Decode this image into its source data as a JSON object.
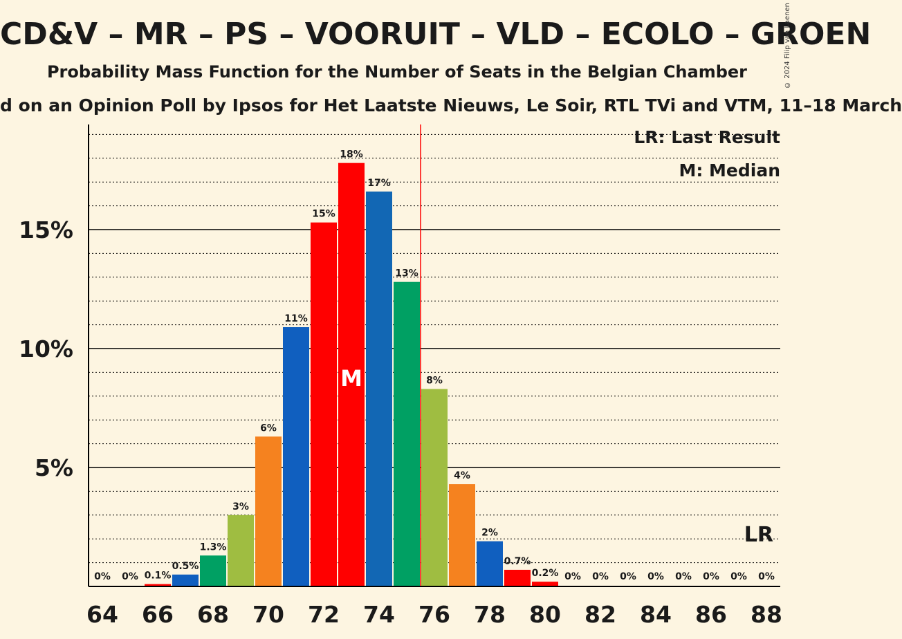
{
  "title": "CD&V – MR – PS – VOORUIT – VLD – ECOLO – GROEN",
  "subtitle": "Probability Mass Function for the Number of Seats in the Belgian Chamber",
  "source": "d on an Opinion Poll by Ipsos for Het Laatste Nieuws, Le Soir, RTL TVi and VTM, 11–18 March",
  "copyright": "© 2024 Filip van Laenen",
  "legend": {
    "last_result": "LR: Last Result",
    "median": "M: Median"
  },
  "colors": {
    "background": "#fdf5e1",
    "cdv": "#f5821f",
    "mr": "#105fbf",
    "ps": "#ff0000",
    "vooruit": "#ff0000",
    "vld": "#1267b4",
    "ecolo": "#00a063",
    "groen": "#9fbd41"
  },
  "chart_data": {
    "type": "bar",
    "x": [
      64,
      65,
      66,
      67,
      68,
      69,
      70,
      71,
      72,
      73,
      74,
      75,
      76,
      77,
      78,
      79,
      80,
      81,
      82,
      83,
      84,
      85,
      86,
      87,
      88
    ],
    "values": [
      0,
      0,
      0.1,
      0.5,
      1.3,
      3.0,
      6.3,
      10.9,
      15.3,
      17.8,
      16.6,
      12.8,
      8.3,
      4.3,
      1.9,
      0.7,
      0.2,
      0,
      0,
      0,
      0,
      0,
      0,
      0,
      0
    ],
    "labels": [
      "0%",
      "0%",
      "0.1%",
      "0.5%",
      "1.3%",
      "3%",
      "6%",
      "11%",
      "15%",
      "18%",
      "17%",
      "13%",
      "8%",
      "4%",
      "2%",
      "0.7%",
      "0.2%",
      "0%",
      "0%",
      "0%",
      "0%",
      "0%",
      "0%",
      "0%",
      "0%"
    ],
    "bar_colors": [
      "#ff0000",
      "#105fbf",
      "#ff0000",
      "#105fbf",
      "#00a063",
      "#9fbd41",
      "#f5821f",
      "#105fbf",
      "#ff0000",
      "#ff0000",
      "#1267b4",
      "#00a063",
      "#9fbd41",
      "#f5821f",
      "#105fbf",
      "#ff0000",
      "#ff0000",
      "#105fbf",
      "#ff0000",
      "#105fbf",
      "#00a063",
      "#9fbd41",
      "#f5821f",
      "#105fbf",
      "#ff0000"
    ],
    "x_ticks": [
      "64",
      "66",
      "68",
      "70",
      "72",
      "74",
      "76",
      "78",
      "80",
      "82",
      "84",
      "86",
      "88"
    ],
    "y_ticks": [
      "5%",
      "10%",
      "15%"
    ],
    "y_tick_values": [
      5,
      10,
      15
    ],
    "ylim": [
      0,
      19.5
    ],
    "median_seat": 73,
    "median_marker": "M",
    "majority_line_after": 75.5,
    "last_result_seat": 88,
    "last_result_marker": "LR",
    "grid": "dotted minor every 1%, solid at 5%",
    "legend_position": "top-right"
  }
}
